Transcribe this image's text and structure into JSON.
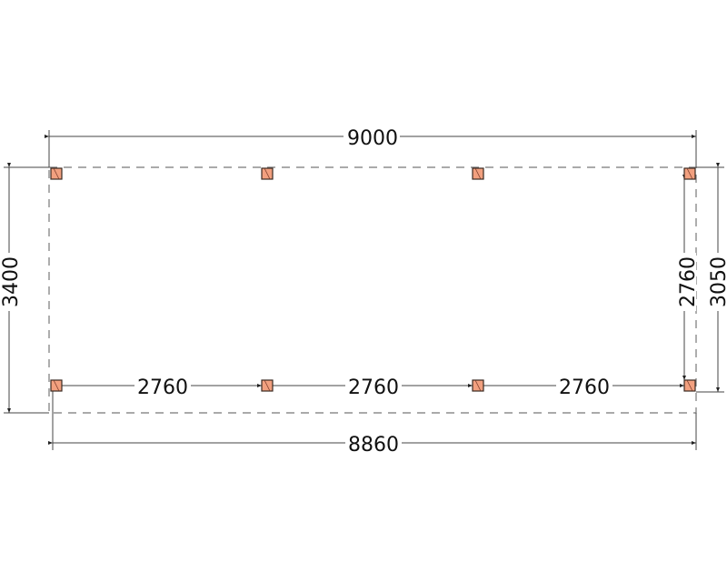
{
  "dimensions": {
    "overall_width": "9000",
    "overall_depth": "3400",
    "post_depth_outer": "3050",
    "post_depth_inner": "2760",
    "post_width": "8860",
    "spans": [
      "2760",
      "2760",
      "2760"
    ]
  },
  "colors": {
    "post_fill": "#f2a07f",
    "post_stroke": "#3a2a22",
    "line": "#444444",
    "dashed_outline": "#777777"
  }
}
